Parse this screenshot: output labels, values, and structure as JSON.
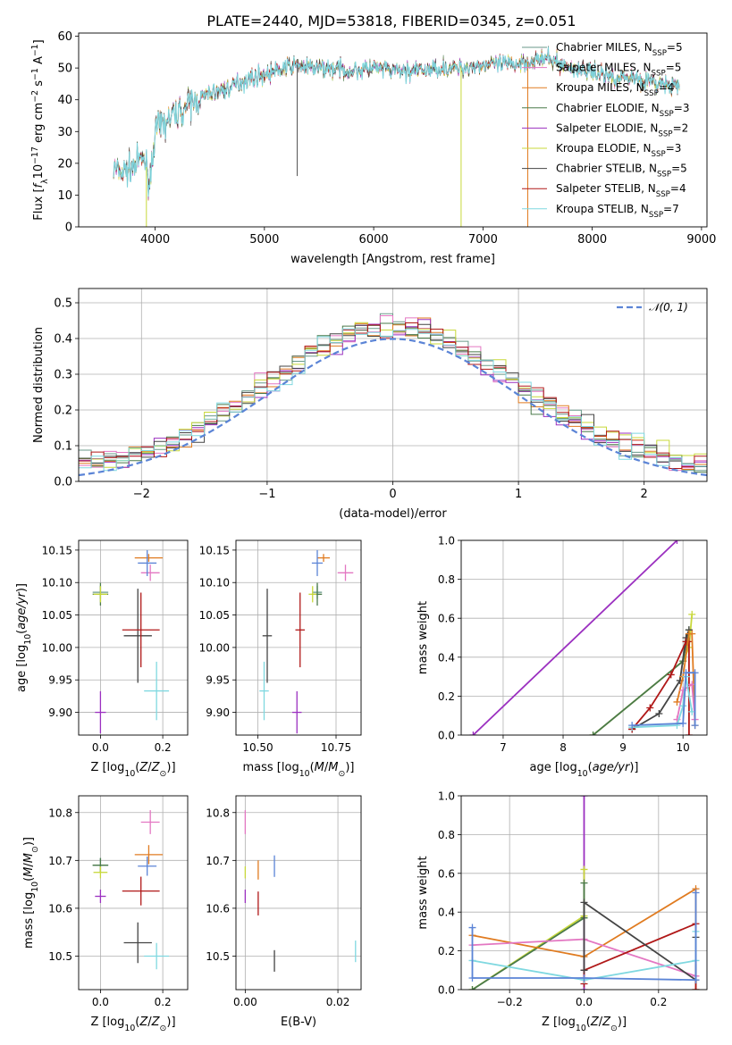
{
  "title": "PLATE=2440, MJD=53818, FIBERID=0345, z=0.051",
  "colors": {
    "Chabrier MILES": "#6a9a8a",
    "Salpeter MILES": "#e377c2",
    "Kroupa MILES": "#e07b20",
    "Chabrier ELODIE": "#4a7a4a",
    "Salpeter ELODIE": "#9b30c0",
    "Kroupa ELODIE": "#c8d83a",
    "Chabrier STELIB": "#444444",
    "Salpeter STELIB": "#b01818",
    "Kroupa STELIB": "#7fd8e0",
    "normal": "#5b84d6",
    "blue": "#5b84d6"
  },
  "chart_data": [
    {
      "id": "spectrum",
      "type": "line",
      "title": "PLATE=2440, MJD=53818, FIBERID=0345, z=0.051",
      "xlabel": "wavelength [Angstrom, rest frame]",
      "ylabel": "Flux [fλ10⁻¹⁷ erg cm⁻² s⁻¹ A⁻¹]",
      "xlim": [
        3300,
        9050
      ],
      "ylim": [
        0,
        61
      ],
      "xticks": [
        4000,
        5000,
        6000,
        7000,
        8000,
        9000
      ],
      "yticks": [
        0,
        10,
        20,
        30,
        40,
        50,
        60
      ],
      "grid": false,
      "legend_position": "right",
      "legend": [
        {
          "label": "Chabrier MILES, N",
          "sub": "SSP",
          "suffix": "=5",
          "color_key": "Chabrier MILES"
        },
        {
          "label": "Salpeter MILES, N",
          "sub": "SSP",
          "suffix": "=5",
          "color_key": "Salpeter MILES"
        },
        {
          "label": "Kroupa MILES, N",
          "sub": "SSP",
          "suffix": "=4",
          "color_key": "Kroupa MILES"
        },
        {
          "label": "Chabrier ELODIE, N",
          "sub": "SSP",
          "suffix": "=3",
          "color_key": "Chabrier ELODIE"
        },
        {
          "label": "Salpeter ELODIE, N",
          "sub": "SSP",
          "suffix": "=2",
          "color_key": "Salpeter ELODIE"
        },
        {
          "label": "Kroupa ELODIE, N",
          "sub": "SSP",
          "suffix": "=3",
          "color_key": "Kroupa ELODIE"
        },
        {
          "label": "Chabrier STELIB, N",
          "sub": "SSP",
          "suffix": "=5",
          "color_key": "Chabrier STELIB"
        },
        {
          "label": "Salpeter STELIB, N",
          "sub": "SSP",
          "suffix": "=4",
          "color_key": "Salpeter STELIB"
        },
        {
          "label": "Kroupa STELIB, N",
          "sub": "SSP",
          "suffix": "=7",
          "color_key": "Kroupa STELIB"
        }
      ],
      "continuum": {
        "x": [
          3620,
          3700,
          3800,
          3900,
          3950,
          4000,
          4100,
          4200,
          4300,
          4400,
          4500,
          4600,
          4700,
          4800,
          4900,
          5000,
          5100,
          5200,
          5300,
          5400,
          5600,
          5800,
          6000,
          6200,
          6400,
          6600,
          6800,
          7000,
          7200,
          7400,
          7600,
          7800,
          8000,
          8200,
          8400,
          8600,
          8800
        ],
        "y": [
          18,
          17,
          19,
          22,
          14,
          30,
          33,
          36,
          38,
          40,
          42,
          43,
          44,
          46,
          47,
          48,
          49,
          50,
          51,
          50,
          50,
          49,
          50,
          49,
          49,
          50,
          50,
          51,
          51,
          52,
          53,
          50,
          49,
          47,
          47,
          45,
          44
        ]
      }
    },
    {
      "id": "residuals",
      "type": "line",
      "xlabel": "(data-model)/error",
      "ylabel": "Normed distribution",
      "xlim": [
        -2.5,
        2.5
      ],
      "ylim": [
        0,
        0.54
      ],
      "xticks": [
        -2,
        -1,
        0,
        1,
        2
      ],
      "yticks": [
        0.0,
        0.1,
        0.2,
        0.3,
        0.4,
        0.5
      ],
      "grid": true,
      "legend_position": "top-right",
      "legend_label": "𝒩(0, 1)",
      "normal_curve": {
        "mean": 0,
        "sigma": 1
      }
    },
    {
      "id": "age-vs-Z",
      "type": "scatter",
      "xlabel": "Z [log10(Z/Z⊙)]",
      "ylabel": "age  [log10(age/yr)]",
      "xlim": [
        -0.07,
        0.28
      ],
      "ylim": [
        9.865,
        10.165
      ],
      "xticks": [
        0.0,
        0.2
      ],
      "yticks": [
        9.9,
        9.95,
        10.0,
        10.05,
        10.1,
        10.15
      ],
      "grid": true,
      "points": [
        {
          "series": "Chabrier MILES",
          "x": 0.0,
          "y": 10.085,
          "xerr": 0.05,
          "yerr": 0.02
        },
        {
          "series": "Salpeter MILES",
          "x": 0.16,
          "y": 10.115,
          "xerr": 0.06,
          "yerr": 0.025
        },
        {
          "series": "Kroupa MILES",
          "x": 0.155,
          "y": 10.138,
          "xerr": 0.09,
          "yerr": 0.012
        },
        {
          "series": "Chabrier ELODIE",
          "x": 0.0,
          "y": 10.082,
          "xerr": 0.05,
          "yerr": 0.035
        },
        {
          "series": "Salpeter ELODIE",
          "x": 0.0,
          "y": 9.9,
          "xerr": 0.035,
          "yerr": 0.065
        },
        {
          "series": "Kroupa ELODIE",
          "x": 0.0,
          "y": 10.082,
          "xerr": 0.045,
          "yerr": 0.025
        },
        {
          "series": "Chabrier STELIB",
          "x": 0.12,
          "y": 10.018,
          "xerr": 0.09,
          "yerr": 0.145
        },
        {
          "series": "Salpeter STELIB",
          "x": 0.13,
          "y": 10.027,
          "xerr": 0.12,
          "yerr": 0.115
        },
        {
          "series": "Kroupa STELIB",
          "x": 0.18,
          "y": 9.933,
          "xerr": 0.08,
          "yerr": 0.09
        },
        {
          "series": "blue",
          "x": 0.15,
          "y": 10.13,
          "xerr": 0.06,
          "yerr": 0.04
        }
      ]
    },
    {
      "id": "age-vs-mass",
      "type": "scatter",
      "xlabel": "mass [log10(M/M⊙)]",
      "xlim": [
        10.43,
        10.83
      ],
      "ylim": [
        9.865,
        10.165
      ],
      "xticks": [
        10.5,
        10.75
      ],
      "yticks": [
        9.9,
        9.95,
        10.0,
        10.05,
        10.1,
        10.15
      ],
      "grid": true,
      "points": [
        {
          "series": "Chabrier MILES",
          "x": 10.69,
          "y": 10.085,
          "xerr": 0.03,
          "yerr": 0.02
        },
        {
          "series": "Salpeter MILES",
          "x": 10.78,
          "y": 10.115,
          "xerr": 0.05,
          "yerr": 0.025
        },
        {
          "series": "Kroupa MILES",
          "x": 10.71,
          "y": 10.138,
          "xerr": 0.04,
          "yerr": 0.012
        },
        {
          "series": "Chabrier ELODIE",
          "x": 10.69,
          "y": 10.082,
          "xerr": 0.03,
          "yerr": 0.035
        },
        {
          "series": "Salpeter ELODIE",
          "x": 10.625,
          "y": 9.9,
          "xerr": 0.03,
          "yerr": 0.065
        },
        {
          "series": "Kroupa ELODIE",
          "x": 10.675,
          "y": 10.082,
          "xerr": 0.025,
          "yerr": 0.025
        },
        {
          "series": "Chabrier STELIB",
          "x": 10.53,
          "y": 10.018,
          "xerr": 0.03,
          "yerr": 0.145
        },
        {
          "series": "Salpeter STELIB",
          "x": 10.635,
          "y": 10.027,
          "xerr": 0.03,
          "yerr": 0.115
        },
        {
          "series": "Kroupa STELIB",
          "x": 10.52,
          "y": 9.933,
          "xerr": 0.03,
          "yerr": 0.09
        },
        {
          "series": "blue",
          "x": 10.69,
          "y": 10.13,
          "xerr": 0.035,
          "yerr": 0.04
        }
      ]
    },
    {
      "id": "weight-vs-age",
      "type": "line",
      "xlabel": "age  [log10(age/yr)]",
      "ylabel": "mass weight",
      "xlim": [
        6.3,
        10.4
      ],
      "ylim": [
        0,
        1
      ],
      "xticks": [
        7,
        8,
        9,
        10
      ],
      "yticks": [
        0.0,
        0.2,
        0.4,
        0.6,
        0.8,
        1.0
      ],
      "grid": true,
      "series": [
        {
          "series": "Salpeter ELODIE",
          "x": [
            6.5,
            9.9
          ],
          "y": [
            0.0,
            1.0
          ]
        },
        {
          "series": "Kroupa ELODIE",
          "x": [
            8.5,
            10.0,
            10.1,
            10.15
          ],
          "y": [
            0.0,
            0.38,
            0.45,
            0.62
          ]
        },
        {
          "series": "Chabrier ELODIE",
          "x": [
            8.5,
            10.0,
            10.1
          ],
          "y": [
            0.0,
            0.38,
            0.54
          ]
        },
        {
          "series": "Chabrier STELIB",
          "x": [
            9.15,
            9.6,
            9.95,
            10.05,
            10.1
          ],
          "y": [
            0.03,
            0.11,
            0.28,
            0.5,
            0.54
          ]
        },
        {
          "series": "Salpeter STELIB",
          "x": [
            9.15,
            9.45,
            9.8,
            10.05,
            10.1,
            10.1
          ],
          "y": [
            0.03,
            0.14,
            0.31,
            0.48,
            0.48,
            0.0
          ]
        },
        {
          "series": "Kroupa MILES",
          "x": [
            9.9,
            10.0,
            10.1,
            10.15,
            10.2
          ],
          "y": [
            0.17,
            0.3,
            0.52,
            0.52,
            0.05
          ]
        },
        {
          "series": "Salpeter MILES",
          "x": [
            9.9,
            10.0,
            10.15,
            10.2
          ],
          "y": [
            0.08,
            0.23,
            0.26,
            0.08
          ]
        },
        {
          "series": "Kroupa STELIB",
          "x": [
            9.15,
            9.9,
            10.0,
            10.05,
            10.15
          ],
          "y": [
            0.04,
            0.05,
            0.15,
            0.3,
            0.12
          ]
        },
        {
          "series": "blue",
          "x": [
            9.15,
            10.0,
            10.05,
            10.2,
            10.2
          ],
          "y": [
            0.05,
            0.06,
            0.32,
            0.32,
            0.05
          ]
        }
      ]
    },
    {
      "id": "mass-vs-Z",
      "type": "scatter",
      "xlabel": "Z [log10(Z/Z⊙)]",
      "ylabel": "mass [log10(M/M⊙)]",
      "xlim": [
        -0.07,
        0.28
      ],
      "ylim": [
        10.43,
        10.835
      ],
      "xticks": [
        0.0,
        0.2
      ],
      "yticks": [
        10.5,
        10.6,
        10.7,
        10.8
      ],
      "grid": true,
      "points": [
        {
          "series": "Chabrier MILES",
          "x": 0.0,
          "y": 10.69,
          "xerr": 0.05,
          "yerr": 0.03
        },
        {
          "series": "Salpeter MILES",
          "x": 0.16,
          "y": 10.78,
          "xerr": 0.06,
          "yerr": 0.05
        },
        {
          "series": "Kroupa MILES",
          "x": 0.155,
          "y": 10.712,
          "xerr": 0.09,
          "yerr": 0.04
        },
        {
          "series": "Chabrier ELODIE",
          "x": 0.0,
          "y": 10.69,
          "xerr": 0.05,
          "yerr": 0.03
        },
        {
          "series": "Salpeter ELODIE",
          "x": 0.0,
          "y": 10.625,
          "xerr": 0.035,
          "yerr": 0.028
        },
        {
          "series": "Kroupa ELODIE",
          "x": 0.0,
          "y": 10.675,
          "xerr": 0.045,
          "yerr": 0.025
        },
        {
          "series": "Chabrier STELIB",
          "x": 0.12,
          "y": 10.528,
          "xerr": 0.09,
          "yerr": 0.085
        },
        {
          "series": "Salpeter STELIB",
          "x": 0.13,
          "y": 10.636,
          "xerr": 0.12,
          "yerr": 0.06
        },
        {
          "series": "Kroupa STELIB",
          "x": 0.18,
          "y": 10.5,
          "xerr": 0.08,
          "yerr": 0.055
        },
        {
          "series": "blue",
          "x": 0.15,
          "y": 10.688,
          "xerr": 0.06,
          "yerr": 0.04
        }
      ]
    },
    {
      "id": "mass-vs-ebv",
      "type": "scatter",
      "xlabel": "E(B-V)",
      "xlim": [
        -0.002,
        0.025
      ],
      "ylim": [
        10.43,
        10.835
      ],
      "xticks": [
        0.0,
        0.02
      ],
      "yticks": [
        10.5,
        10.6,
        10.7,
        10.8
      ],
      "grid": true,
      "points": [
        {
          "series": "Salpeter MILES",
          "x": 0.0,
          "y": 10.78,
          "yerr": 0.05
        },
        {
          "series": "Kroupa ELODIE",
          "x": 0.0,
          "y": 10.675,
          "yerr": 0.025
        },
        {
          "series": "Salpeter ELODIE",
          "x": 0.0,
          "y": 10.625,
          "yerr": 0.028
        },
        {
          "series": "Kroupa MILES",
          "x": 0.0028,
          "y": 10.68,
          "yerr": 0.04
        },
        {
          "series": "Salpeter STELIB",
          "x": 0.0028,
          "y": 10.61,
          "yerr": 0.05
        },
        {
          "series": "blue",
          "x": 0.0063,
          "y": 10.688,
          "yerr": 0.045
        },
        {
          "series": "Chabrier STELIB",
          "x": 0.0063,
          "y": 10.49,
          "yerr": 0.045
        },
        {
          "series": "Kroupa STELIB",
          "x": 0.0238,
          "y": 10.51,
          "yerr": 0.045
        }
      ]
    },
    {
      "id": "weight-vs-Z",
      "type": "line",
      "xlabel": "Z [log10(Z/Z⊙)]",
      "ylabel": "mass weight",
      "xlim": [
        -0.33,
        0.33
      ],
      "ylim": [
        0,
        1
      ],
      "xticks": [
        -0.2,
        0.0,
        0.2
      ],
      "yticks": [
        0.0,
        0.2,
        0.4,
        0.6,
        0.8,
        1.0
      ],
      "grid": true,
      "series": [
        {
          "series": "Salpeter ELODIE",
          "x": [
            0.0,
            0.0
          ],
          "y": [
            0.0,
            1.0
          ]
        },
        {
          "series": "Kroupa ELODIE",
          "x": [
            -0.3,
            0.0,
            0.0
          ],
          "y": [
            0.0,
            0.38,
            0.62
          ]
        },
        {
          "series": "Chabrier ELODIE",
          "x": [
            -0.3,
            0.0,
            0.0
          ],
          "y": [
            0.0,
            0.37,
            0.55
          ]
        },
        {
          "series": "Kroupa MILES",
          "x": [
            -0.3,
            0.0,
            0.3,
            0.3
          ],
          "y": [
            0.28,
            0.17,
            0.52,
            0.0
          ]
        },
        {
          "series": "Salpeter MILES",
          "x": [
            -0.3,
            0.0,
            0.3
          ],
          "y": [
            0.23,
            0.26,
            0.07
          ]
        },
        {
          "series": "Salpeter STELIB",
          "x": [
            0.0,
            0.0,
            0.3,
            0.3
          ],
          "y": [
            0.03,
            0.1,
            0.34,
            0.0
          ]
        },
        {
          "series": "Chabrier STELIB",
          "x": [
            0.0,
            0.0,
            0.3,
            0.3
          ],
          "y": [
            0.1,
            0.45,
            0.05,
            0.27
          ]
        },
        {
          "series": "Kroupa STELIB",
          "x": [
            -0.3,
            0.0,
            0.3,
            0.3
          ],
          "y": [
            0.15,
            0.05,
            0.15,
            0.3
          ]
        },
        {
          "series": "blue",
          "x": [
            -0.3,
            -0.3,
            0.0,
            0.3,
            0.3
          ],
          "y": [
            0.32,
            0.06,
            0.06,
            0.05,
            0.5
          ]
        }
      ]
    }
  ]
}
